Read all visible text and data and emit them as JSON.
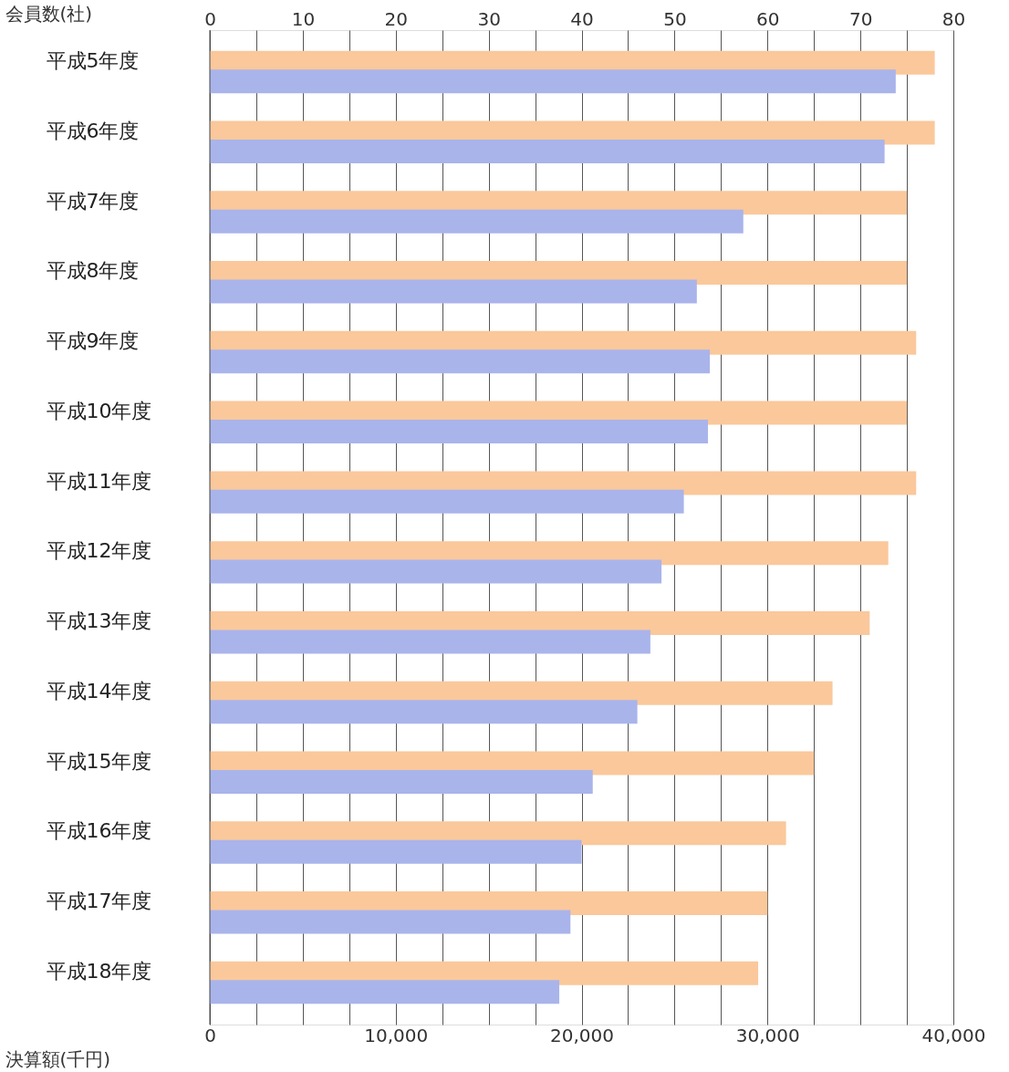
{
  "chart_data": {
    "type": "bar",
    "orientation": "horizontal",
    "categories": [
      "平成5年度",
      "平成6年度",
      "平成7年度",
      "平成8年度",
      "平成9年度",
      "平成10年度",
      "平成11年度",
      "平成12年度",
      "平成13年度",
      "平成14年度",
      "平成15年度",
      "平成16年度",
      "平成17年度",
      "平成18年度"
    ],
    "series": [
      {
        "axis": "x2",
        "color": "#fac89b",
        "values": [
          78,
          78,
          75,
          75,
          76,
          75,
          76,
          73,
          71,
          67,
          65,
          62,
          60,
          59
        ]
      },
      {
        "color": "#a9b4eb",
        "values": [
          36900,
          36300,
          28700,
          26200,
          26900,
          26800,
          25500,
          24300,
          23700,
          23000,
          20600,
          20000,
          19400,
          18800
        ]
      }
    ],
    "x2label": "会員数(社)",
    "xlabel": "決算額(千円)",
    "x2lim": [
      0,
      80
    ],
    "x2ticks": [
      0,
      {
        "value": 5,
        "label": null
      },
      10,
      {
        "value": 15,
        "label": null
      },
      20,
      {
        "value": 25,
        "label": null
      },
      30,
      {
        "value": 35,
        "label": null
      },
      40,
      {
        "value": 45,
        "label": null
      },
      50,
      {
        "value": 55,
        "label": null
      },
      60,
      {
        "value": 65,
        "label": null
      },
      70,
      {
        "value": 75,
        "label": null
      },
      80
    ],
    "xlim": [
      0,
      40000
    ],
    "xticks": [
      0,
      {
        "value": 10000,
        "label": "10,000"
      },
      {
        "value": 20000,
        "label": "20,000"
      },
      {
        "value": 30000,
        "label": "30,000"
      },
      {
        "value": 40000,
        "label": "40,000"
      }
    ],
    "grid": "x2"
  }
}
